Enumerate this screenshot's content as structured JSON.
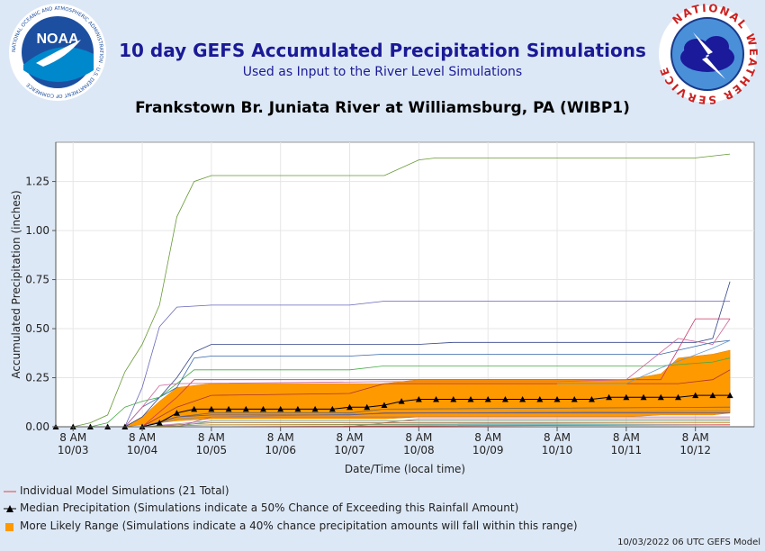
{
  "header": {
    "title": "10 day GEFS Accumulated Precipitation Simulations",
    "subtitle": "Used as Input to the River Level Simulations",
    "location": "Frankstown Br. Juniata River at Williamsburg, PA (WIBP1)",
    "noaa_logo_text": "NOAA",
    "noaa_ring_text": "NATIONAL OCEANIC AND ATMOSPHERIC ADMINISTRATION · U.S. DEPARTMENT OF COMMERCE",
    "nws_ring_text": "NATIONAL WEATHER SERVICE"
  },
  "legend": {
    "individual": "Individual Model Simulations (21 Total)",
    "median": "Median Precipitation (Simulations indicate a 50% Chance of Exceeding this Rainfall Amount)",
    "range": "More Likely Range (Simulations indicate a 40% chance precipitation amounts will fall within this range)"
  },
  "footer": "10/03/2022 06 UTC GEFS Model",
  "colors": {
    "range_fill": "#ff9900",
    "median": "#000000",
    "title": "#1a1a96",
    "background": "#dde8f6"
  },
  "chart_data": {
    "type": "line",
    "xlabel": "Date/Time (local time)",
    "ylabel": "Accumulated Precipitation (inches)",
    "ylim": [
      0,
      1.45
    ],
    "yticks": [
      "0.00",
      "0.25",
      "0.50",
      "0.75",
      "1.00",
      "1.25"
    ],
    "xlim": [
      -0.25,
      9.85
    ],
    "xticks": [
      {
        "x": 0,
        "line1": "8 AM",
        "line2": "10/03"
      },
      {
        "x": 1,
        "line1": "8 AM",
        "line2": "10/04"
      },
      {
        "x": 2,
        "line1": "8 AM",
        "line2": "10/05"
      },
      {
        "x": 3,
        "line1": "8 AM",
        "line2": "10/06"
      },
      {
        "x": 4,
        "line1": "8 AM",
        "line2": "10/07"
      },
      {
        "x": 5,
        "line1": "8 AM",
        "line2": "10/08"
      },
      {
        "x": 6,
        "line1": "8 AM",
        "line2": "10/09"
      },
      {
        "x": 7,
        "line1": "8 AM",
        "line2": "10/10"
      },
      {
        "x": 8,
        "line1": "8 AM",
        "line2": "10/11"
      },
      {
        "x": 9,
        "line1": "8 AM",
        "line2": "10/12"
      }
    ],
    "x_unit_note": "x in days after 8 AM 10/03",
    "range_band": {
      "x": [
        0.75,
        1.0,
        1.25,
        1.5,
        2.0,
        4.0,
        4.5,
        5.0,
        7.0,
        8.0,
        8.5,
        8.75,
        9.25,
        9.5
      ],
      "upper": [
        0.0,
        0.05,
        0.13,
        0.2,
        0.22,
        0.22,
        0.22,
        0.24,
        0.24,
        0.24,
        0.27,
        0.35,
        0.37,
        0.39
      ],
      "lower": [
        0.0,
        0.01,
        0.02,
        0.03,
        0.04,
        0.04,
        0.04,
        0.05,
        0.05,
        0.05,
        0.06,
        0.06,
        0.06,
        0.07
      ]
    },
    "median": {
      "x": [
        -0.25,
        0.0,
        0.25,
        0.5,
        0.75,
        1.0,
        1.25,
        1.5,
        1.75,
        2.0,
        2.25,
        2.5,
        2.75,
        3.0,
        3.25,
        3.5,
        3.75,
        4.0,
        4.25,
        4.5,
        4.75,
        5.0,
        5.25,
        5.5,
        5.75,
        6.0,
        6.25,
        6.5,
        6.75,
        7.0,
        7.25,
        7.5,
        7.75,
        8.0,
        8.25,
        8.5,
        8.75,
        9.0,
        9.25,
        9.5
      ],
      "y": [
        0.0,
        0.0,
        0.0,
        0.0,
        0.0,
        0.0,
        0.02,
        0.07,
        0.09,
        0.09,
        0.09,
        0.09,
        0.09,
        0.09,
        0.09,
        0.09,
        0.09,
        0.1,
        0.1,
        0.11,
        0.13,
        0.14,
        0.14,
        0.14,
        0.14,
        0.14,
        0.14,
        0.14,
        0.14,
        0.14,
        0.14,
        0.14,
        0.15,
        0.15,
        0.15,
        0.15,
        0.15,
        0.16,
        0.16,
        0.16
      ]
    },
    "series": [
      {
        "color": "#669933",
        "x": [
          -0.25,
          0.0,
          0.25,
          0.5,
          0.75,
          1.0,
          1.25,
          1.5,
          1.75,
          2.0,
          4.5,
          5.0,
          5.25,
          9.0,
          9.5
        ],
        "y": [
          0,
          0,
          0.02,
          0.06,
          0.28,
          0.42,
          0.62,
          1.07,
          1.25,
          1.28,
          1.28,
          1.36,
          1.37,
          1.37,
          1.39
        ]
      },
      {
        "color": "#6666bb",
        "x": [
          0.5,
          0.75,
          1.0,
          1.25,
          1.5,
          2.0,
          4.0,
          4.5,
          9.5
        ],
        "y": [
          0,
          0,
          0.2,
          0.51,
          0.61,
          0.62,
          0.62,
          0.64,
          0.64
        ]
      },
      {
        "color": "#334488",
        "x": [
          0.75,
          1.0,
          1.5,
          1.75,
          2.0,
          5.0,
          5.5,
          9.0,
          9.25,
          9.5
        ],
        "y": [
          0,
          0.05,
          0.25,
          0.38,
          0.42,
          0.42,
          0.43,
          0.43,
          0.45,
          0.74
        ]
      },
      {
        "color": "#3366aa",
        "x": [
          0.75,
          1.0,
          1.5,
          1.75,
          2.0,
          4.0,
          4.5,
          8.5,
          9.25,
          9.5
        ],
        "y": [
          0,
          0.1,
          0.2,
          0.35,
          0.36,
          0.36,
          0.37,
          0.37,
          0.43,
          0.44
        ]
      },
      {
        "color": "#44aa44",
        "x": [
          0.25,
          0.5,
          0.75,
          1.0,
          1.25,
          1.5,
          1.75,
          2.0,
          4.0,
          4.5,
          8.5,
          9.25,
          9.5
        ],
        "y": [
          0,
          0.02,
          0.1,
          0.13,
          0.15,
          0.22,
          0.29,
          0.29,
          0.29,
          0.31,
          0.31,
          0.33,
          0.35
        ]
      },
      {
        "color": "#cc3366",
        "x": [
          1.0,
          1.5,
          1.75,
          2.0,
          4.0,
          4.5,
          8.5,
          9.0,
          9.5
        ],
        "y": [
          0,
          0.15,
          0.24,
          0.24,
          0.24,
          0.24,
          0.24,
          0.55,
          0.55
        ]
      },
      {
        "color": "#cc6699",
        "x": [
          0.75,
          1.0,
          1.25,
          1.5,
          4.5,
          7.0,
          8.0,
          8.75,
          9.25,
          9.5
        ],
        "y": [
          0,
          0.1,
          0.21,
          0.22,
          0.23,
          0.23,
          0.24,
          0.45,
          0.42,
          0.55
        ]
      },
      {
        "color": "#aa3333",
        "x": [
          1.0,
          1.5,
          2.0,
          4.0,
          4.5,
          8.75,
          9.25,
          9.5
        ],
        "y": [
          0,
          0.1,
          0.16,
          0.17,
          0.22,
          0.22,
          0.24,
          0.29
        ]
      },
      {
        "color": "#6699cc",
        "x": [
          7.0,
          8.0,
          8.5,
          9.25,
          9.5
        ],
        "y": [
          0.22,
          0.22,
          0.3,
          0.4,
          0.44
        ]
      },
      {
        "color": "#666666",
        "x": [
          1.0,
          1.5,
          2.0,
          4.0,
          4.5,
          9.5
        ],
        "y": [
          0,
          0.05,
          0.07,
          0.07,
          0.09,
          0.1
        ]
      },
      {
        "color": "#888888",
        "x": [
          1.0,
          1.5,
          2.0,
          5.0,
          9.5
        ],
        "y": [
          0,
          0.04,
          0.05,
          0.07,
          0.08
        ]
      },
      {
        "color": "#555599",
        "x": [
          1.0,
          1.5,
          2.0,
          4.0,
          4.5,
          9.5
        ],
        "y": [
          0,
          0.05,
          0.06,
          0.06,
          0.07,
          0.07
        ]
      },
      {
        "color": "#cc6666",
        "x": [
          4.0,
          4.5,
          5.0,
          9.5
        ],
        "y": [
          0,
          0.02,
          0.04,
          0.04
        ]
      },
      {
        "color": "#bb77bb",
        "x": [
          1.0,
          2.0,
          9.5
        ],
        "y": [
          0,
          0.03,
          0.03
        ]
      },
      {
        "color": "#996633",
        "x": [
          1.0,
          2.0,
          9.5
        ],
        "y": [
          0,
          0.02,
          0.02
        ]
      },
      {
        "color": "#339999",
        "x": [
          1.0,
          2.0,
          9.5
        ],
        "y": [
          0,
          0.01,
          0.01
        ]
      },
      {
        "color": "#996699",
        "x": [
          1.5,
          2.0,
          4.5,
          9.5
        ],
        "y": [
          0,
          0.05,
          0.05,
          0.05
        ]
      },
      {
        "color": "#77aa77",
        "x": [
          1.5,
          2.0,
          9.5
        ],
        "y": [
          0,
          0.03,
          0.03
        ]
      },
      {
        "color": "#cc9933",
        "x": [
          1.0,
          2.0,
          9.5
        ],
        "y": [
          0,
          0.01,
          0.02
        ]
      },
      {
        "color": "#8888cc",
        "x": [
          1.0,
          2.0,
          9.5
        ],
        "y": [
          0,
          0.0,
          0.0
        ]
      },
      {
        "color": "#ee4444",
        "x": [
          1.0,
          2.0,
          9.5
        ],
        "y": [
          0,
          0.0,
          0.01
        ]
      }
    ]
  }
}
